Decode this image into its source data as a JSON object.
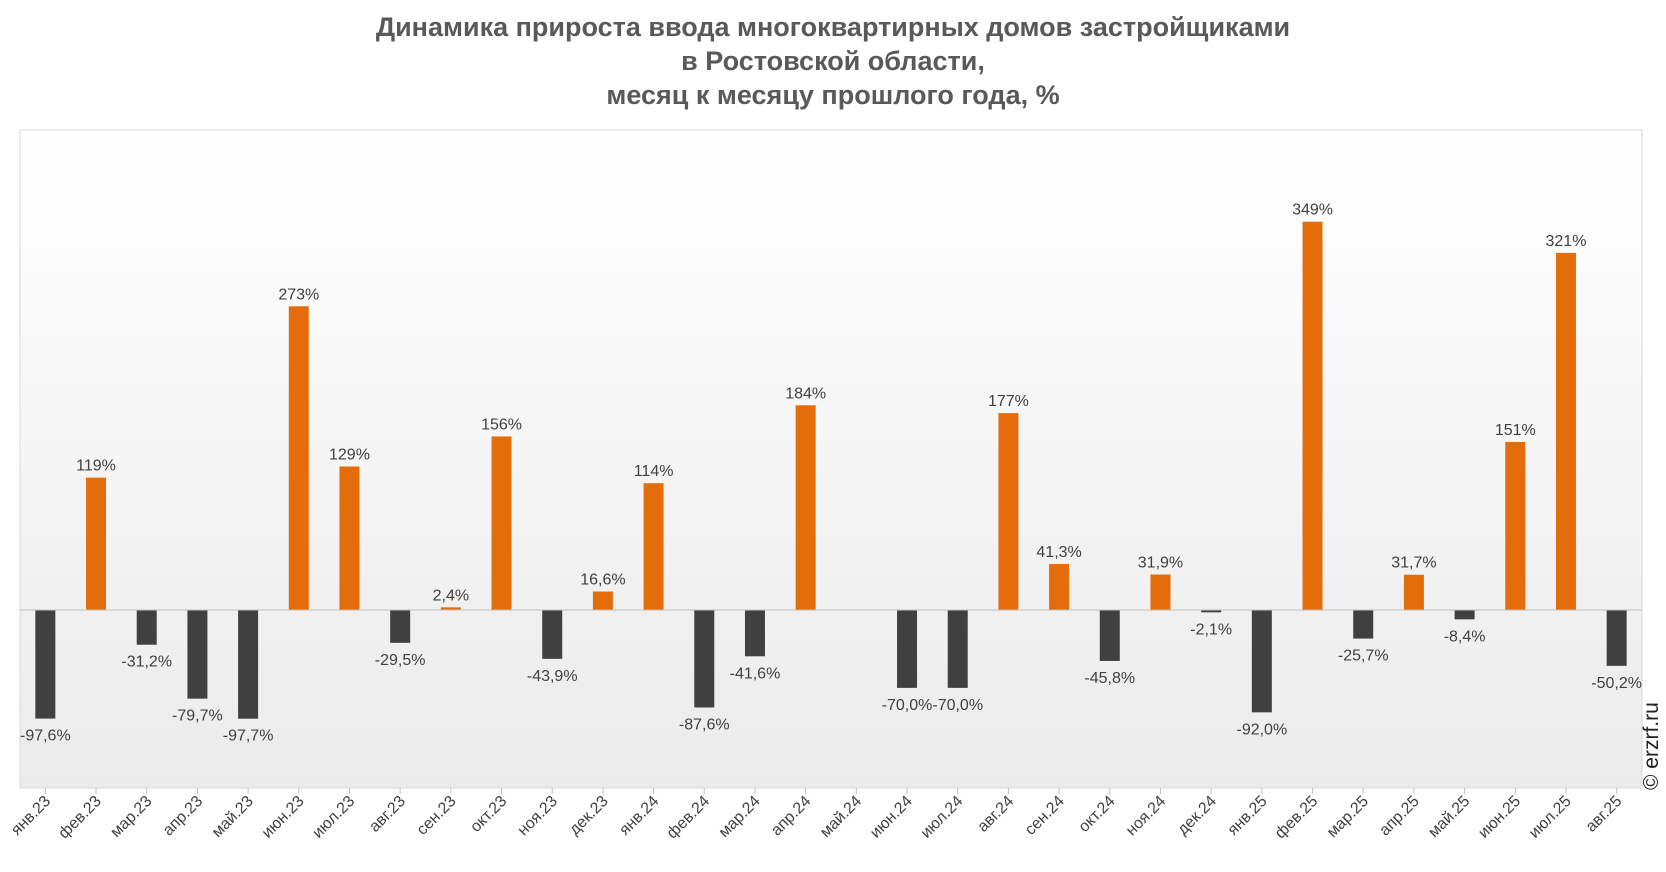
{
  "title_lines": [
    "Динамика прироста ввода многоквартирных домов застройщиками",
    "в Ростовской области,",
    "месяц к месяцу прошлого года, %"
  ],
  "watermark": "© erzrf.ru",
  "colors": {
    "positive": "#E46C0A",
    "negative": "#404040",
    "label": "#404040"
  },
  "chart_data": {
    "type": "bar",
    "categories": [
      "янв.23",
      "фев.23",
      "мар.23",
      "апр.23",
      "май.23",
      "июн.23",
      "июл.23",
      "авг.23",
      "сен.23",
      "окт.23",
      "ноя.23",
      "дек.23",
      "янв.24",
      "фев.24",
      "мар.24",
      "апр.24",
      "май.24",
      "июн.24",
      "июл.24",
      "авг.24",
      "сен.24",
      "окт.24",
      "ноя.24",
      "дек.24",
      "янв.25",
      "фев.25",
      "мар.25",
      "апр.25",
      "май.25",
      "июн.25",
      "июл.25",
      "авг.25"
    ],
    "values": [
      -97.6,
      119,
      -31.2,
      -79.7,
      -97.7,
      273,
      129,
      -29.5,
      2.4,
      156,
      -43.9,
      16.6,
      114,
      -87.6,
      -41.6,
      184,
      null,
      -70.0,
      -70.0,
      177,
      41.3,
      -45.8,
      31.9,
      -2.1,
      -92.0,
      349,
      -25.7,
      31.7,
      -8.4,
      151,
      321,
      -50.2
    ],
    "data_labels": [
      "-97,6%",
      "119%",
      "-31,2%",
      "-79,7%",
      "-97,7%",
      "273%",
      "129%",
      "-29,5%",
      "2,4%",
      "156%",
      "-43,9%",
      "16,6%",
      "114%",
      "-87,6%",
      "-41,6%",
      "184%",
      "",
      "-70,0%",
      "-70,0%",
      "177%",
      "41,3%",
      "-45,8%",
      "31,9%",
      "-2,1%",
      "-92,0%",
      "349%",
      "-25,7%",
      "31,7%",
      "-8,4%",
      "151%",
      "321%",
      "-50,2%"
    ],
    "ylim": [
      -150,
      400
    ],
    "grid": false,
    "legend": "none"
  }
}
